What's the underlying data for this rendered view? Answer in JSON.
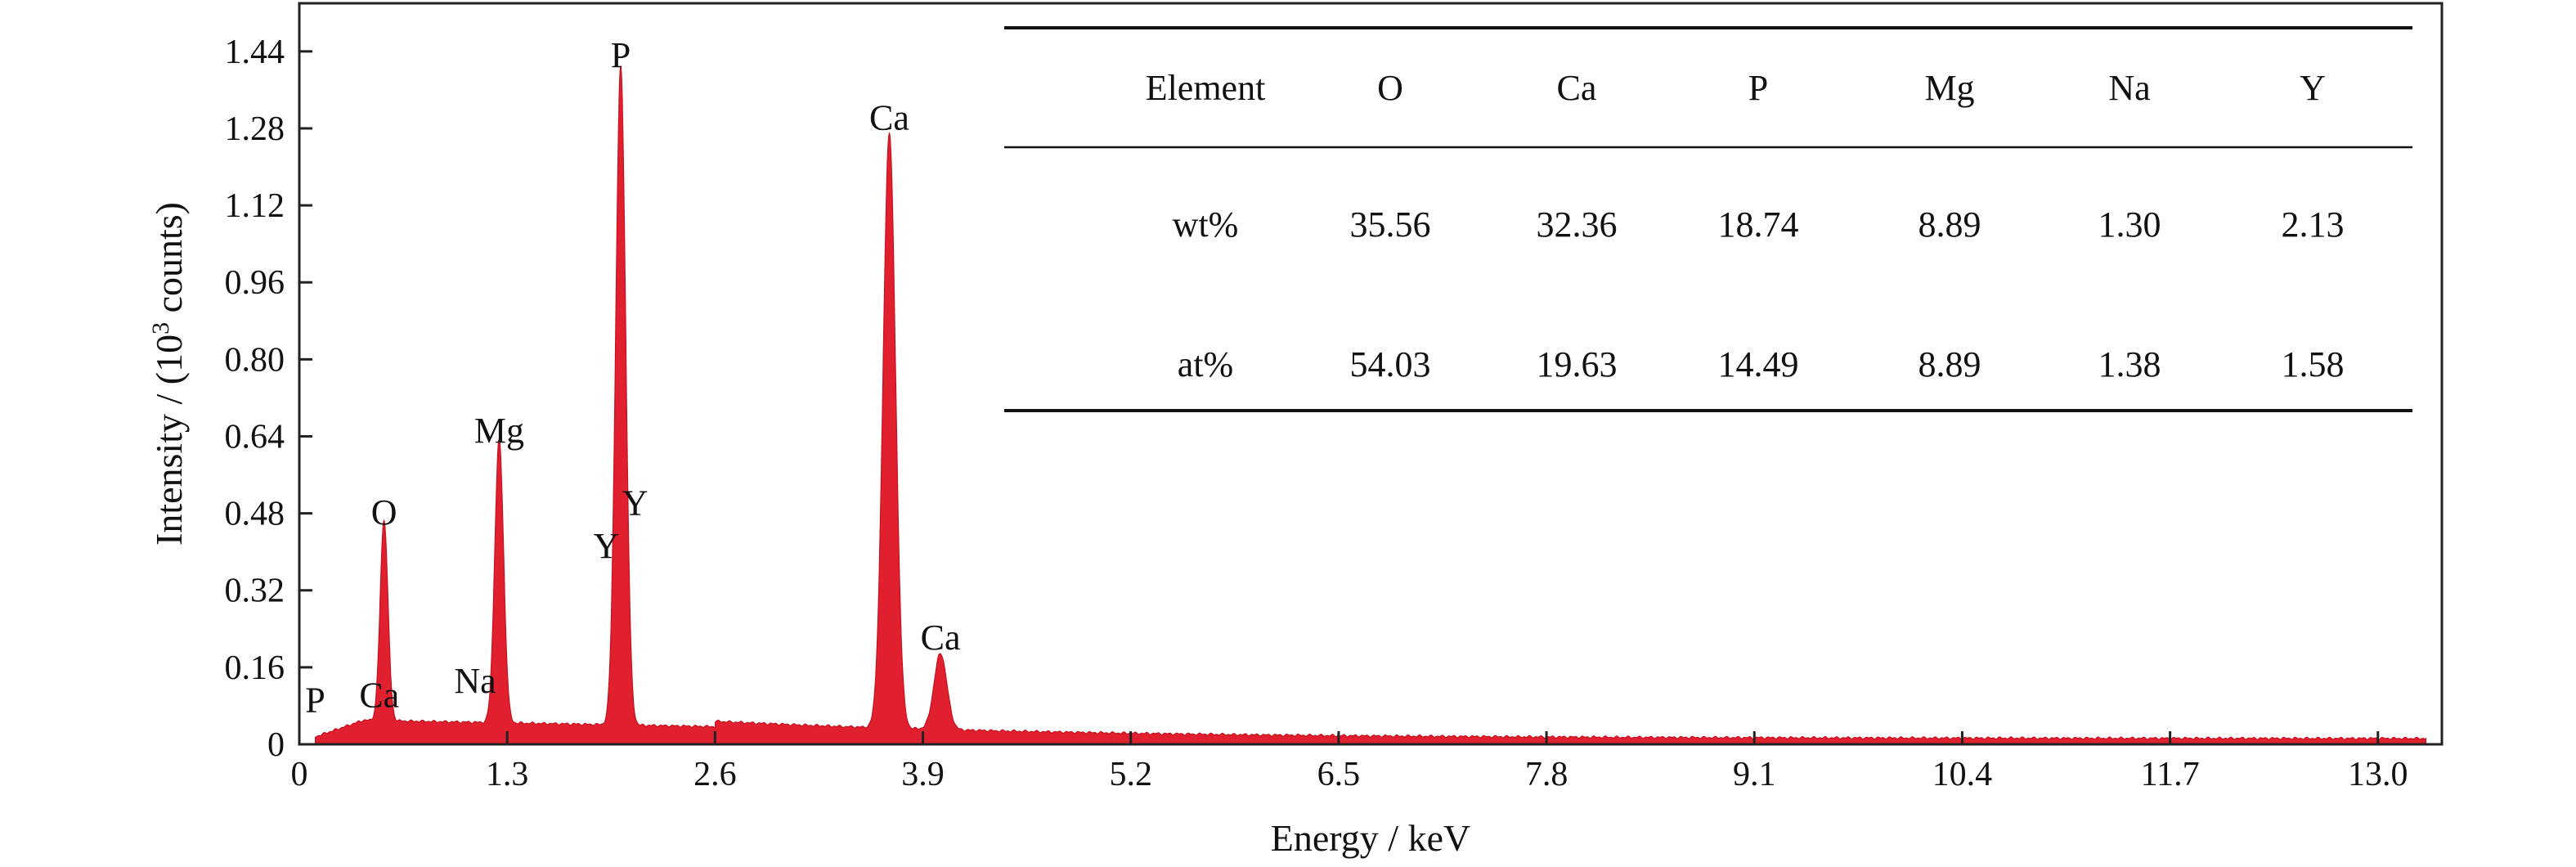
{
  "chart_data": {
    "type": "area",
    "xlabel": "Energy / keV",
    "ylabel": {
      "prefix": "Intensity / (10",
      "sup": "3",
      "suffix": " counts)"
    },
    "xlim": [
      0,
      13.4
    ],
    "ylim": [
      0,
      1.54
    ],
    "xticks": [
      "0",
      "1.3",
      "2.6",
      "3.9",
      "5.2",
      "6.5",
      "7.8",
      "9.1",
      "10.4",
      "11.7",
      "13.0"
    ],
    "yticks": [
      "0",
      "0.16",
      "0.32",
      "0.48",
      "0.64",
      "0.80",
      "0.96",
      "1.12",
      "1.28",
      "1.44"
    ],
    "grid": false,
    "series": [
      {
        "color": "#e0202e",
        "baseline": 0.012,
        "points": [
          [
            0.1,
            0.008
          ],
          [
            0.3,
            0.04
          ],
          [
            0.5,
            0.05
          ],
          [
            0.53,
            0.43
          ],
          [
            0.93,
            0.08
          ],
          [
            1.04,
            0.02
          ],
          [
            1.25,
            0.6
          ],
          [
            1.45,
            0.03
          ],
          [
            1.74,
            0.05
          ],
          [
            1.92,
            0.36
          ],
          [
            2.01,
            1.38
          ],
          [
            2.1,
            0.12
          ],
          [
            2.6,
            0.04
          ],
          [
            3.69,
            1.25
          ],
          [
            3.86,
            0.08
          ],
          [
            4.01,
            0.17
          ],
          [
            4.5,
            0.03
          ],
          [
            6.0,
            0.02
          ],
          [
            8.0,
            0.015
          ],
          [
            8.62,
            0.03
          ],
          [
            10.0,
            0.012
          ],
          [
            13.3,
            0.008
          ]
        ]
      }
    ],
    "peak_labels": [
      {
        "text": "P",
        "x": 0.1,
        "y": 0.04
      },
      {
        "text": "Ca",
        "x": 0.5,
        "y": 0.05
      },
      {
        "text": "O",
        "x": 0.53,
        "y": 0.43
      },
      {
        "text": "Na",
        "x": 1.1,
        "y": 0.08
      },
      {
        "text": "Mg",
        "x": 1.25,
        "y": 0.6
      },
      {
        "text": "Y",
        "x": 1.92,
        "y": 0.36
      },
      {
        "text": "Y",
        "x": 2.1,
        "y": 0.45
      },
      {
        "text": "P",
        "x": 2.01,
        "y": 1.38
      },
      {
        "text": "Ca",
        "x": 3.69,
        "y": 1.25
      },
      {
        "text": "Ca",
        "x": 4.01,
        "y": 0.17
      }
    ],
    "table": {
      "columns": [
        "Element",
        "O",
        "Ca",
        "P",
        "Mg",
        "Na",
        "Y"
      ],
      "rows": [
        [
          "wt%",
          "35.56",
          "32.36",
          "18.74",
          "8.89",
          "1.30",
          "2.13"
        ],
        [
          "at%",
          "54.03",
          "19.63",
          "14.49",
          "8.89",
          "1.38",
          "1.58"
        ]
      ]
    }
  }
}
